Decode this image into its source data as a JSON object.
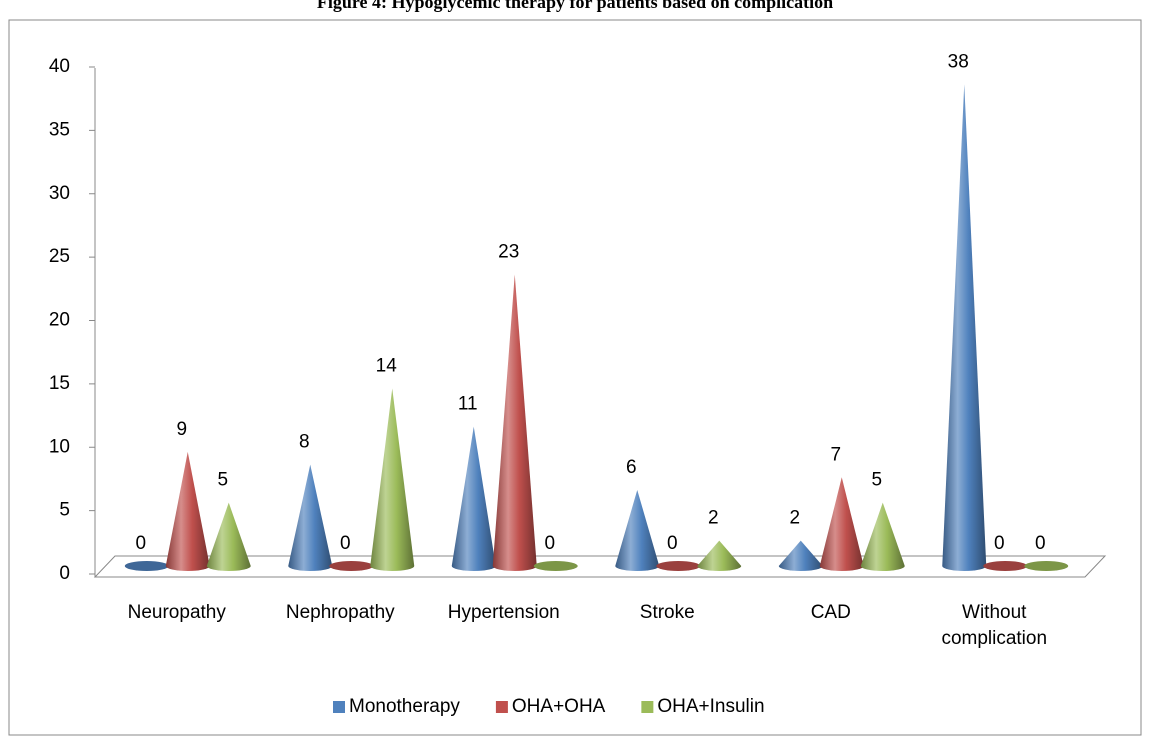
{
  "chart_data": {
    "type": "cone",
    "title": "Figure 4: Hypoglycemic therapy for patients based on complication",
    "categories": [
      "Neuropathy",
      "Nephropathy",
      "Hypertension",
      "Stroke",
      "CAD",
      "Without complication"
    ],
    "series": [
      {
        "name": "Monotherapy",
        "color": "#4f81bd",
        "values": [
          0,
          8,
          11,
          6,
          2,
          38
        ]
      },
      {
        "name": "OHA+OHA",
        "color": "#c0504d",
        "values": [
          9,
          0,
          23,
          0,
          7,
          0
        ]
      },
      {
        "name": "OHA+Insulin",
        "color": "#9bbb59",
        "values": [
          5,
          14,
          0,
          2,
          5,
          0
        ]
      }
    ],
    "ylim": [
      0,
      40
    ],
    "yticks": [
      0,
      5,
      10,
      15,
      20,
      25,
      30,
      35,
      40
    ],
    "legend": "bottom"
  }
}
